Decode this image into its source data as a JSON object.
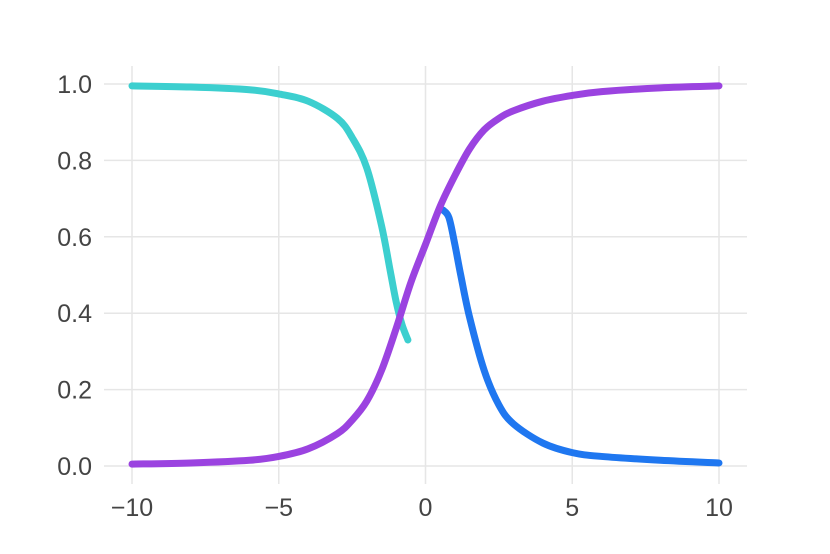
{
  "chart_data": {
    "type": "line",
    "title": "",
    "xlabel": "",
    "ylabel": "",
    "xlim": [
      -10,
      10
    ],
    "ylim": [
      0,
      1
    ],
    "grid": true,
    "x_ticks": [
      {
        "value": -10,
        "label": "−10"
      },
      {
        "value": -5,
        "label": "−5"
      },
      {
        "value": 0,
        "label": "0"
      },
      {
        "value": 5,
        "label": "5"
      },
      {
        "value": 10,
        "label": "10"
      }
    ],
    "y_ticks": [
      {
        "value": 0,
        "label": "0.0"
      },
      {
        "value": 0.2,
        "label": "0.2"
      },
      {
        "value": 0.4,
        "label": "0.4"
      },
      {
        "value": 0.6,
        "label": "0.6"
      },
      {
        "value": 0.8,
        "label": "0.8"
      },
      {
        "value": 1.0,
        "label": "1.0"
      }
    ],
    "series": [
      {
        "color": "#3ccfcf",
        "x": [
          -10,
          -8,
          -6,
          -5,
          -4,
          -3,
          -2.5,
          -2,
          -1.5,
          -1.2,
          -1,
          -0.8,
          -0.6
        ],
        "y": [
          0.995,
          0.992,
          0.985,
          0.974,
          0.955,
          0.91,
          0.86,
          0.78,
          0.63,
          0.51,
          0.43,
          0.37,
          0.33
        ]
      },
      {
        "color": "#1f77f0",
        "x": [
          0.6,
          0.8,
          1.0,
          1.2,
          1.5,
          2,
          2.5,
          3,
          4,
          5,
          6,
          8,
          10
        ],
        "y": [
          0.67,
          0.65,
          0.58,
          0.5,
          0.39,
          0.25,
          0.16,
          0.11,
          0.06,
          0.035,
          0.025,
          0.015,
          0.008
        ]
      },
      {
        "color": "#9b43e0",
        "x": [
          -10,
          -8,
          -6,
          -5,
          -4,
          -3,
          -2.5,
          -2,
          -1.5,
          -1,
          -0.5,
          0,
          0.5,
          1,
          1.5,
          2,
          2.5,
          3,
          4,
          5,
          6,
          8,
          10
        ],
        "y": [
          0.005,
          0.008,
          0.015,
          0.025,
          0.045,
          0.085,
          0.12,
          0.17,
          0.25,
          0.36,
          0.48,
          0.58,
          0.68,
          0.76,
          0.83,
          0.88,
          0.91,
          0.93,
          0.955,
          0.97,
          0.98,
          0.99,
          0.995
        ]
      }
    ]
  }
}
